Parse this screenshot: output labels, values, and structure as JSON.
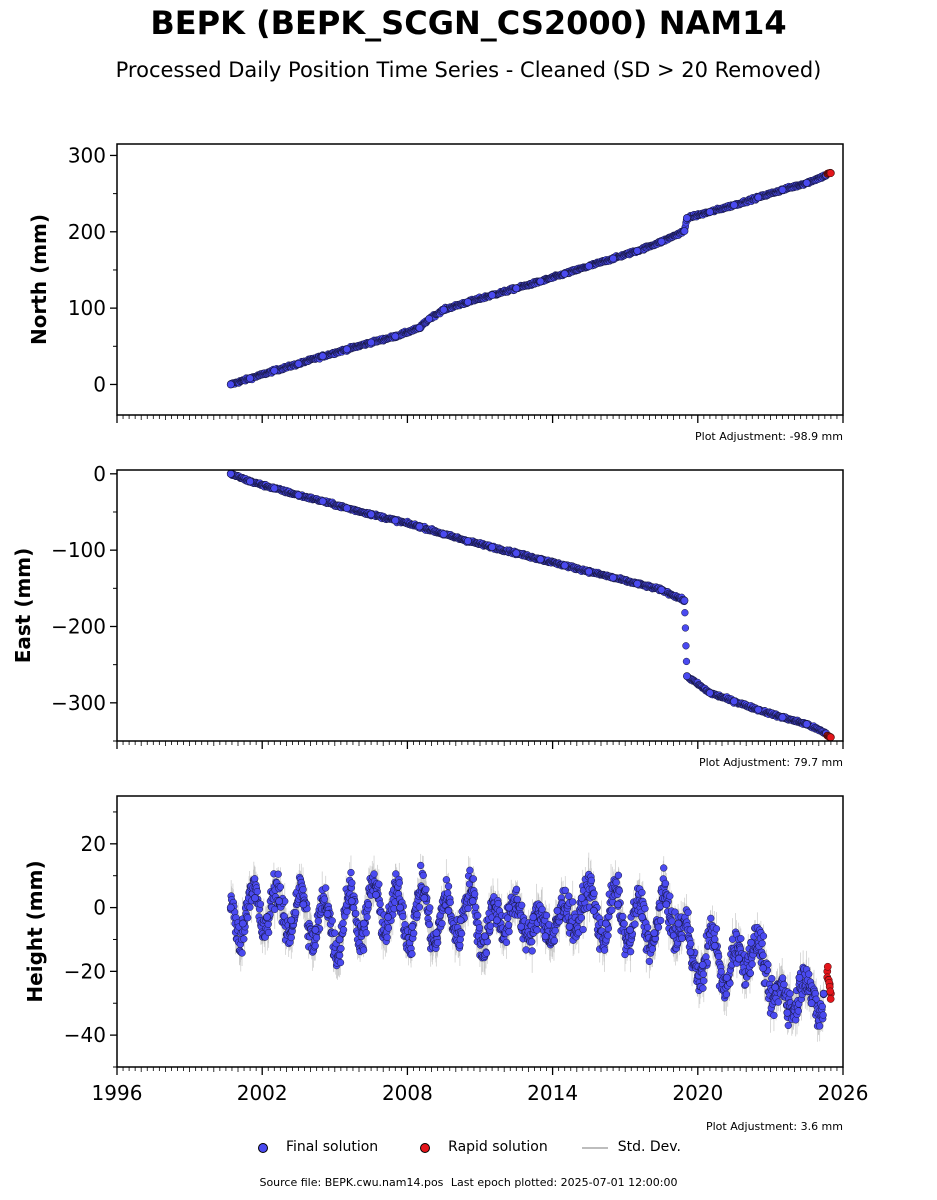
{
  "title": "BEPK (BEPK_SCGN_CS2000) NAM14",
  "subtitle": "Processed Daily Position Time Series - Cleaned (SD > 20 Removed)",
  "colors": {
    "final": "#4a4af0",
    "rapid": "#e4161b",
    "stddev": "#bdbdbd"
  },
  "legend": {
    "final": "Final solution",
    "rapid": "Rapid solution",
    "stddev": "Std. Dev."
  },
  "footer": {
    "source": "Source file: BEPK.cwu.nam14.pos",
    "last_epoch": "Last epoch plotted: 2025-07-01 12:00:00"
  },
  "chart_data": [
    {
      "type": "scatter",
      "ylabel": "North (mm)",
      "adjustment": "Plot Adjustment: -98.9 mm",
      "xlim": [
        1996,
        2026
      ],
      "ylim": [
        -40,
        315
      ],
      "yticks": [
        0,
        100,
        200,
        300
      ],
      "ytick_labels": [
        "0",
        "100",
        "200",
        "300"
      ],
      "xticks": [
        1996,
        2002,
        2008,
        2014,
        2020,
        2026
      ],
      "xtick_labels": [
        "",
        "",
        "",
        "",
        "",
        ""
      ],
      "series": [
        {
          "kind": "final",
          "x": [
            2000.7,
            2001.5,
            2002.5,
            2003.5,
            2004.5,
            2005.5,
            2006.5,
            2007.5,
            2008.5,
            2008.9,
            2009.5,
            2010.5,
            2011.5,
            2012.5,
            2013.5,
            2014.5,
            2015.5,
            2016.5,
            2017.5,
            2018.5,
            2019.45,
            2019.55,
            2020.5,
            2021.5,
            2022.5,
            2023.5,
            2024.5,
            2025.3
          ],
          "y": [
            0,
            8,
            18,
            27,
            37,
            46,
            55,
            63,
            74,
            86,
            98,
            108,
            117,
            126,
            135,
            145,
            155,
            165,
            175,
            187,
            201,
            218,
            226,
            235,
            245,
            255,
            264,
            274
          ]
        },
        {
          "kind": "rapid",
          "x": [
            2025.35,
            2025.5
          ],
          "y": [
            276,
            277
          ]
        }
      ]
    },
    {
      "type": "scatter",
      "ylabel": "East (mm)",
      "adjustment": "Plot Adjustment: 79.7 mm",
      "xlim": [
        1996,
        2026
      ],
      "ylim": [
        -350,
        5
      ],
      "yticks": [
        -300,
        -200,
        -100,
        0
      ],
      "ytick_labels": [
        "−300",
        "−200",
        "−100",
        "0"
      ],
      "xticks": [
        1996,
        2002,
        2008,
        2014,
        2020,
        2026
      ],
      "xtick_labels": [
        "",
        "",
        "",
        "",
        "",
        ""
      ],
      "series": [
        {
          "kind": "final",
          "x": [
            2000.7,
            2001.5,
            2002.5,
            2003.5,
            2004.5,
            2005.5,
            2006.5,
            2007.5,
            2008.5,
            2009.5,
            2010.5,
            2011.5,
            2012.5,
            2013.5,
            2014.5,
            2015.5,
            2016.5,
            2017.5,
            2018.5,
            2019.45,
            2019.55,
            2020.5,
            2021.5,
            2022.5,
            2023.5,
            2024.5,
            2025.3
          ],
          "y": [
            0,
            -10,
            -19,
            -28,
            -36,
            -45,
            -53,
            -61,
            -69,
            -79,
            -88,
            -96,
            -104,
            -112,
            -120,
            -128,
            -136,
            -144,
            -152,
            -166,
            -265,
            -287,
            -298,
            -309,
            -319,
            -328,
            -340
          ]
        },
        {
          "kind": "rapid",
          "x": [
            2025.35,
            2025.5
          ],
          "y": [
            -343,
            -345
          ]
        }
      ]
    },
    {
      "type": "scatter",
      "ylabel": "Height (mm)",
      "adjustment": "Plot Adjustment: 3.6 mm",
      "xlim": [
        1996,
        2026
      ],
      "ylim": [
        -50,
        35
      ],
      "yticks": [
        -40,
        -20,
        0,
        20
      ],
      "ytick_labels": [
        "−40",
        "−20",
        "0",
        "20"
      ],
      "xticks": [
        1996,
        2002,
        2008,
        2014,
        2020,
        2026
      ],
      "xtick_labels": [
        "1996",
        "2002",
        "2008",
        "2014",
        "2020",
        "2026"
      ],
      "series": [
        {
          "kind": "final",
          "x": [
            2000.7,
            2001.2,
            2001.7,
            2002.2,
            2002.7,
            2003.2,
            2003.7,
            2004.2,
            2004.7,
            2005.2,
            2005.7,
            2006.2,
            2006.7,
            2007.2,
            2007.7,
            2008.2,
            2008.7,
            2009.2,
            2009.7,
            2010.2,
            2010.7,
            2011.2,
            2011.7,
            2012.2,
            2012.7,
            2013.2,
            2013.7,
            2014.2,
            2014.7,
            2015.2,
            2015.7,
            2016.2,
            2016.7,
            2017.2,
            2017.7,
            2018.2,
            2018.7,
            2019.2,
            2019.7,
            2020.2,
            2020.7,
            2021.2,
            2021.7,
            2022.2,
            2022.7,
            2023.2,
            2023.7,
            2024.2,
            2024.7,
            2025.2
          ],
          "y": [
            0,
            -5,
            3,
            -3,
            2,
            -4,
            1,
            -7,
            -2,
            -10,
            2,
            -5,
            4,
            -3,
            0,
            -6,
            3,
            -8,
            -1,
            -4,
            2,
            -9,
            -4,
            0,
            -6,
            -3,
            -9,
            -1,
            -6,
            3,
            -1,
            -5,
            1,
            -7,
            -3,
            -8,
            1,
            -5,
            -14,
            -18,
            -12,
            -22,
            -16,
            -11,
            -19,
            -25,
            -33,
            -22,
            -30,
            -27
          ]
        },
        {
          "kind": "rapid",
          "x": [
            2025.35,
            2025.45,
            2025.5
          ],
          "y": [
            -20,
            -24,
            -27
          ]
        }
      ]
    }
  ]
}
